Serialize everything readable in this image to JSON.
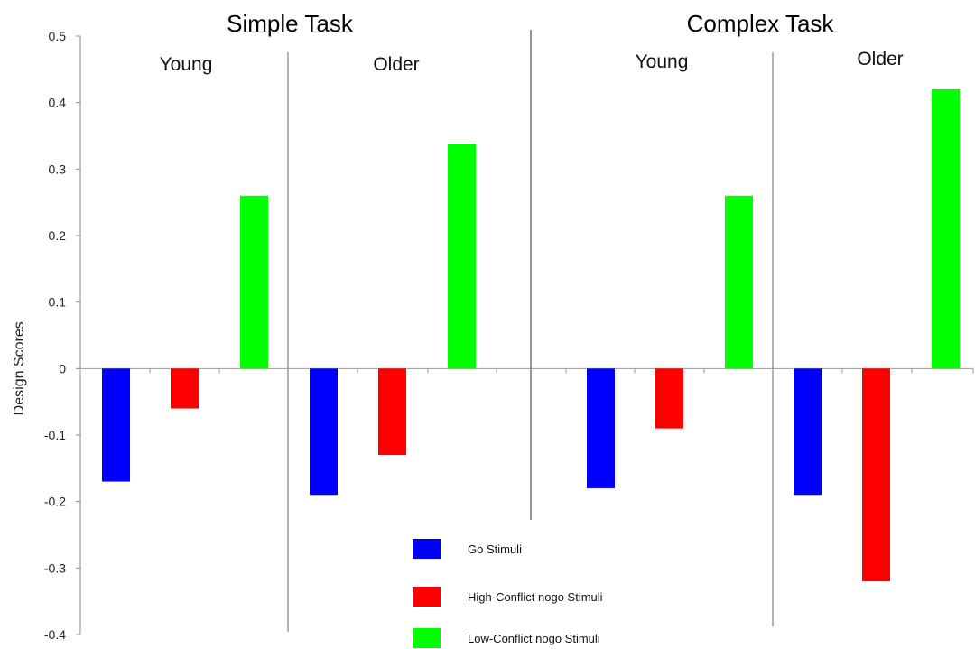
{
  "chart_data": {
    "type": "bar",
    "title": "",
    "xlabel": "",
    "ylabel": "Design Scores",
    "ylim": [
      -0.4,
      0.5
    ],
    "yticks": [
      0.5,
      0.4,
      0.3,
      0.2,
      0.1,
      0,
      -0.1,
      -0.2,
      -0.3,
      -0.4
    ],
    "ytick_labels": [
      "0.5",
      "0.4",
      "0.3",
      "0.2",
      "0.1",
      "0",
      "-0.1",
      "-0.2",
      "-0.3",
      "-0.4"
    ],
    "grid": false,
    "legend_position": "bottom-center",
    "task_titles": [
      "Simple Task",
      "Complex Task"
    ],
    "categories": [
      {
        "task": "Simple Task",
        "group": "Young"
      },
      {
        "task": "Simple Task",
        "group": "Older"
      },
      {
        "task": "Complex Task",
        "group": "Young"
      },
      {
        "task": "Complex Task",
        "group": "Older"
      }
    ],
    "series": [
      {
        "name": "Go Stimuli",
        "color": "#0000ff",
        "values": [
          -0.17,
          -0.19,
          -0.18,
          -0.19
        ]
      },
      {
        "name": "High-Conflict nogo Stimuli",
        "color": "#ff0000",
        "values": [
          -0.06,
          -0.13,
          -0.09,
          -0.32
        ]
      },
      {
        "name": "Low-Conflict nogo Stimuli",
        "color": "#00ff00",
        "values": [
          0.26,
          0.338,
          0.26,
          0.42
        ]
      }
    ]
  }
}
